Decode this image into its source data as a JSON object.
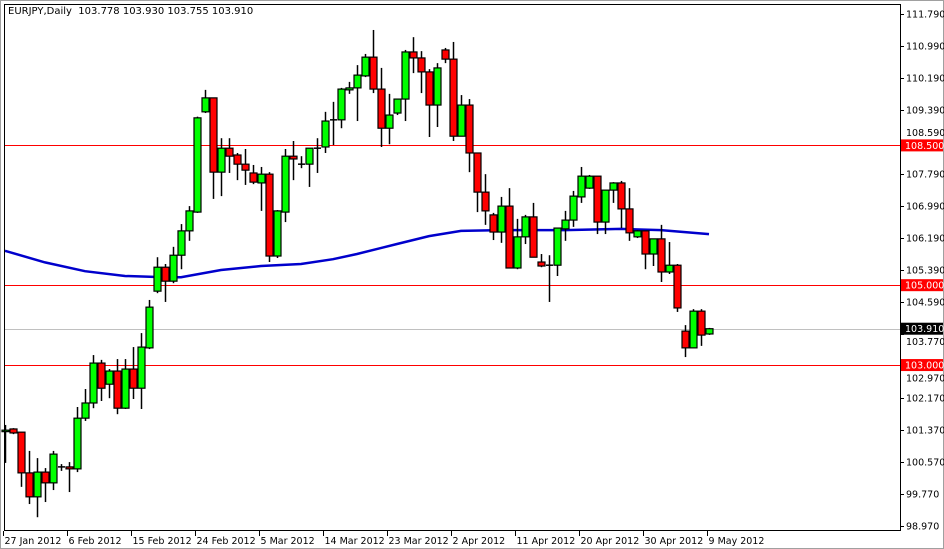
{
  "header": {
    "symbol_timeframe": "EURJPY,Daily",
    "ohlc_text": "103.778 103.930 103.755 103.910"
  },
  "colors": {
    "bull": "#00ff00",
    "bear": "#ff0000",
    "outline": "#000000",
    "moving_average": "#0000cc",
    "level_line": "#ff0000",
    "bid_line": "#c0c0c0",
    "bid_label_bg": "#000000"
  },
  "chart_data": {
    "type": "candlestick",
    "symbol": "EURJPY",
    "timeframe": "Daily",
    "ylim": [
      98.97,
      111.79
    ],
    "grid": false,
    "y_tick_labels": [
      "111.790",
      "110.990",
      "110.190",
      "109.390",
      "108.590",
      "107.790",
      "106.990",
      "106.190",
      "105.390",
      "104.590",
      "103.770",
      "102.970",
      "102.170",
      "101.370",
      "100.570",
      "99.770",
      "98.970"
    ],
    "x_tick_labels": [
      {
        "date": "2012-01-27",
        "label": "27 Jan 2012"
      },
      {
        "date": "2012-02-06",
        "label": "6 Feb 2012"
      },
      {
        "date": "2012-02-15",
        "label": "15 Feb 2012"
      },
      {
        "date": "2012-02-24",
        "label": "24 Feb 2012"
      },
      {
        "date": "2012-03-05",
        "label": "5 Mar 2012"
      },
      {
        "date": "2012-03-14",
        "label": "14 Mar 2012"
      },
      {
        "date": "2012-03-23",
        "label": "23 Mar 2012"
      },
      {
        "date": "2012-04-02",
        "label": "2 Apr 2012"
      },
      {
        "date": "2012-04-11",
        "label": "11 Apr 2012"
      },
      {
        "date": "2012-04-20",
        "label": "20 Apr 2012"
      },
      {
        "date": "2012-04-30",
        "label": "30 Apr 2012"
      },
      {
        "date": "2012-05-09",
        "label": "9 May 2012"
      }
    ],
    "levels": [
      {
        "price": 108.5,
        "label": "108.500",
        "kind": "level"
      },
      {
        "price": 105.0,
        "label": "105.000",
        "kind": "level"
      },
      {
        "price": 103.0,
        "label": "103.000",
        "kind": "level"
      },
      {
        "price": 103.91,
        "label": "103.910",
        "kind": "bid"
      }
    ],
    "candle_fields": [
      "date",
      "open",
      "high",
      "low",
      "close"
    ],
    "candles": [
      [
        "2012-01-27",
        101.35,
        101.5,
        100.55,
        101.37
      ],
      [
        "2012-01-29",
        101.4,
        101.42,
        101.27,
        101.3
      ],
      [
        "2012-01-30",
        101.32,
        101.32,
        99.95,
        100.3
      ],
      [
        "2012-01-31",
        100.3,
        100.85,
        99.52,
        99.7
      ],
      [
        "2012-02-01",
        99.7,
        100.67,
        99.19,
        100.32
      ],
      [
        "2012-02-02",
        100.32,
        100.42,
        99.57,
        100.05
      ],
      [
        "2012-02-03",
        100.05,
        100.85,
        99.87,
        100.77
      ],
      [
        "2012-02-05",
        100.45,
        100.52,
        100.35,
        100.45
      ],
      [
        "2012-02-06",
        100.45,
        100.57,
        99.82,
        100.4
      ],
      [
        "2012-02-07",
        100.4,
        101.95,
        100.32,
        101.67
      ],
      [
        "2012-02-08",
        101.67,
        102.4,
        101.6,
        102.05
      ],
      [
        "2012-02-09",
        102.05,
        103.25,
        101.92,
        103.05
      ],
      [
        "2012-02-10",
        103.05,
        103.13,
        102.1,
        102.42
      ],
      [
        "2012-02-12",
        102.52,
        102.9,
        102.17,
        102.85
      ],
      [
        "2012-02-13",
        102.85,
        103.15,
        101.77,
        101.92
      ],
      [
        "2012-02-14",
        101.92,
        103.15,
        101.9,
        102.9
      ],
      [
        "2012-02-15",
        102.9,
        103.45,
        102.15,
        102.42
      ],
      [
        "2012-02-16",
        102.42,
        103.8,
        101.9,
        103.45
      ],
      [
        "2012-02-17",
        103.43,
        104.63,
        103.4,
        104.45
      ],
      [
        "2012-02-19",
        104.85,
        105.7,
        104.8,
        105.45
      ],
      [
        "2012-02-20",
        105.45,
        105.53,
        104.58,
        105.1
      ],
      [
        "2012-02-21",
        105.1,
        105.96,
        105.05,
        105.75
      ],
      [
        "2012-02-22",
        105.75,
        106.53,
        105.4,
        106.36
      ],
      [
        "2012-02-23",
        106.36,
        106.98,
        106.11,
        106.86
      ],
      [
        "2012-02-24",
        106.83,
        109.22,
        106.81,
        109.19
      ],
      [
        "2012-02-26",
        109.34,
        109.89,
        109.31,
        109.69
      ],
      [
        "2012-02-27",
        109.69,
        109.69,
        107.16,
        107.83
      ],
      [
        "2012-02-28",
        107.83,
        108.68,
        107.23,
        108.43
      ],
      [
        "2012-02-29",
        108.43,
        108.68,
        107.81,
        108.23
      ],
      [
        "2012-03-01",
        108.26,
        108.31,
        107.63,
        108.03
      ],
      [
        "2012-03-02",
        108.03,
        108.41,
        107.51,
        107.88
      ],
      [
        "2012-03-04",
        107.81,
        108.01,
        107.53,
        107.58
      ],
      [
        "2012-03-05",
        107.56,
        107.96,
        106.86,
        107.78
      ],
      [
        "2012-03-06",
        107.78,
        107.83,
        105.58,
        105.73
      ],
      [
        "2012-03-07",
        105.73,
        106.88,
        105.68,
        106.86
      ],
      [
        "2012-03-08",
        106.83,
        108.41,
        106.58,
        108.23
      ],
      [
        "2012-03-09",
        108.23,
        108.61,
        107.63,
        108.16
      ],
      [
        "2012-03-11",
        108.03,
        108.23,
        107.93,
        108.03
      ],
      [
        "2012-03-12",
        108.03,
        108.43,
        107.46,
        108.43
      ],
      [
        "2012-03-13",
        108.43,
        108.68,
        107.81,
        108.43
      ],
      [
        "2012-03-14",
        108.46,
        109.34,
        108.31,
        109.11
      ],
      [
        "2012-03-15",
        109.14,
        109.59,
        108.51,
        109.14
      ],
      [
        "2012-03-16",
        109.14,
        109.94,
        108.93,
        109.91
      ],
      [
        "2012-03-18",
        109.89,
        110.09,
        109.79,
        109.94
      ],
      [
        "2012-03-19",
        109.94,
        110.51,
        109.11,
        110.26
      ],
      [
        "2012-03-20",
        110.24,
        110.79,
        110.21,
        110.71
      ],
      [
        "2012-03-21",
        110.71,
        111.39,
        109.81,
        109.91
      ],
      [
        "2012-03-22",
        109.91,
        110.44,
        108.46,
        108.93
      ],
      [
        "2012-03-23",
        108.93,
        109.79,
        108.53,
        109.26
      ],
      [
        "2012-03-25",
        109.31,
        109.66,
        109.26,
        109.66
      ],
      [
        "2012-03-26",
        109.66,
        110.89,
        109.11,
        110.84
      ],
      [
        "2012-03-27",
        110.84,
        111.21,
        110.31,
        110.69
      ],
      [
        "2012-03-28",
        110.69,
        110.86,
        109.81,
        110.34
      ],
      [
        "2012-03-29",
        110.34,
        110.41,
        108.71,
        109.51
      ],
      [
        "2012-03-30",
        109.51,
        110.56,
        108.96,
        110.44
      ],
      [
        "2012-04-01",
        110.89,
        110.94,
        110.56,
        110.66
      ],
      [
        "2012-04-02",
        110.66,
        111.09,
        108.61,
        108.73
      ],
      [
        "2012-04-03",
        108.73,
        109.76,
        108.73,
        109.51
      ],
      [
        "2012-04-04",
        109.51,
        109.66,
        107.83,
        108.31
      ],
      [
        "2012-04-05",
        108.31,
        108.31,
        106.83,
        107.33
      ],
      [
        "2012-04-06",
        107.33,
        107.78,
        106.51,
        106.86
      ],
      [
        "2012-04-08",
        106.76,
        106.81,
        106.13,
        106.33
      ],
      [
        "2012-04-09",
        106.33,
        107.21,
        106.06,
        106.98
      ],
      [
        "2012-04-10",
        106.98,
        107.43,
        105.43,
        105.43
      ],
      [
        "2012-04-11",
        105.43,
        106.66,
        105.4,
        106.21
      ],
      [
        "2012-04-12",
        106.21,
        106.76,
        106.03,
        106.71
      ],
      [
        "2012-04-13",
        106.71,
        107.06,
        105.7,
        105.7
      ],
      [
        "2012-04-15",
        105.58,
        105.78,
        105.45,
        105.48
      ],
      [
        "2012-04-16",
        105.5,
        105.75,
        104.58,
        105.5
      ],
      [
        "2012-04-17",
        105.5,
        106.43,
        105.23,
        106.43
      ],
      [
        "2012-04-18",
        106.41,
        106.86,
        106.11,
        106.63
      ],
      [
        "2012-04-19",
        106.63,
        107.36,
        106.46,
        107.23
      ],
      [
        "2012-04-20",
        107.21,
        107.96,
        107.06,
        107.73
      ],
      [
        "2012-04-22",
        107.43,
        107.76,
        107.41,
        107.73
      ],
      [
        "2012-04-23",
        107.73,
        107.73,
        106.28,
        106.58
      ],
      [
        "2012-04-24",
        106.58,
        107.38,
        106.28,
        107.38
      ],
      [
        "2012-04-25",
        107.38,
        107.58,
        107.06,
        107.56
      ],
      [
        "2012-04-26",
        107.56,
        107.61,
        106.43,
        106.91
      ],
      [
        "2012-04-27",
        106.91,
        107.43,
        106.11,
        106.31
      ],
      [
        "2012-04-29",
        106.21,
        106.38,
        106.18,
        106.36
      ],
      [
        "2012-04-30",
        106.36,
        106.36,
        105.4,
        105.78
      ],
      [
        "2012-05-01",
        105.78,
        106.16,
        105.48,
        106.16
      ],
      [
        "2012-05-02",
        106.16,
        106.51,
        105.08,
        105.33
      ],
      [
        "2012-05-03",
        105.33,
        106.08,
        105.28,
        105.5
      ],
      [
        "2012-05-04",
        105.5,
        105.53,
        104.33,
        104.43
      ],
      [
        "2012-05-06",
        103.85,
        104.0,
        103.2,
        103.43
      ],
      [
        "2012-05-07",
        103.43,
        104.4,
        103.43,
        104.35
      ],
      [
        "2012-05-08",
        104.35,
        104.4,
        103.48,
        103.75
      ],
      [
        "2012-05-09",
        103.778,
        103.93,
        103.755,
        103.91
      ]
    ],
    "moving_average": [
      [
        "2012-01-27",
        105.86
      ],
      [
        "2012-02-02",
        105.57
      ],
      [
        "2012-02-08",
        105.35
      ],
      [
        "2012-02-14",
        105.23
      ],
      [
        "2012-02-20",
        105.2
      ],
      [
        "2012-02-22",
        105.2
      ],
      [
        "2012-02-28",
        105.38
      ],
      [
        "2012-03-05",
        105.48
      ],
      [
        "2012-03-11",
        105.53
      ],
      [
        "2012-03-15",
        105.65
      ],
      [
        "2012-03-19",
        105.78
      ],
      [
        "2012-03-25",
        106.03
      ],
      [
        "2012-03-29",
        106.23
      ],
      [
        "2012-04-03",
        106.36
      ],
      [
        "2012-04-09",
        106.38
      ],
      [
        "2012-04-18",
        106.38
      ],
      [
        "2012-04-26",
        106.41
      ],
      [
        "2012-05-02",
        106.38
      ],
      [
        "2012-05-06",
        106.33
      ],
      [
        "2012-05-09",
        106.28
      ]
    ]
  }
}
